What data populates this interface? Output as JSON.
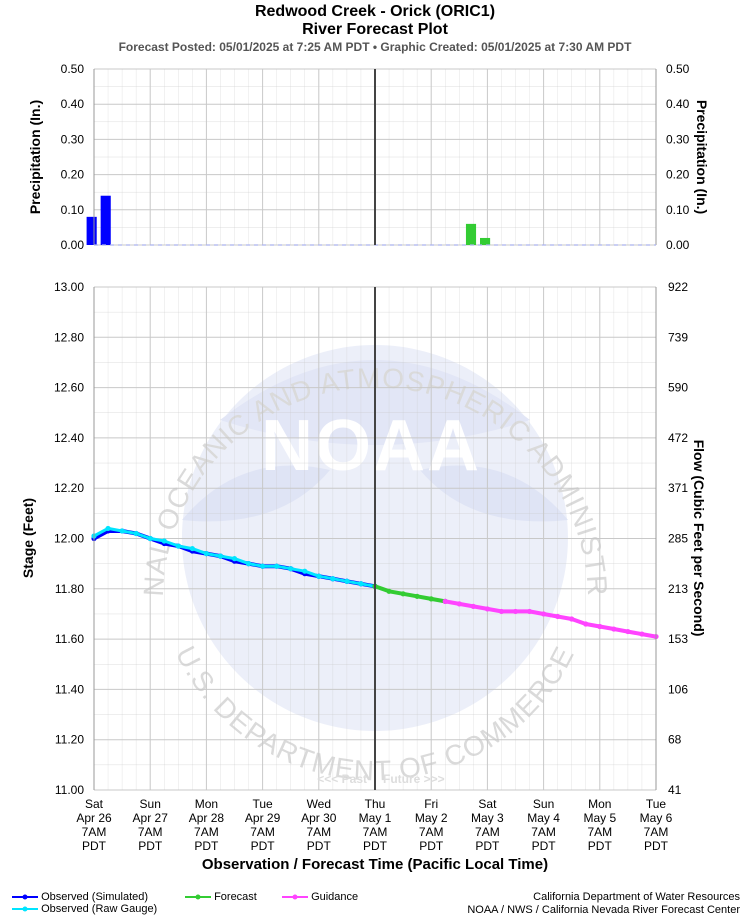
{
  "header": {
    "title": "Redwood Creek - Orick (ORIC1)",
    "subtitle": "River Forecast Plot",
    "posted_line": "Forecast Posted: 05/01/2025 at 7:25 AM PDT  •  Graphic Created: 05/01/2025 at 7:30 AM PDT"
  },
  "labels": {
    "past": "<<< Past",
    "future": "Future >>>",
    "watermark_top": "NATIONAL OCEANIC AND ATMOSPHERIC ADMINISTRATION",
    "watermark_bottom": "U.S. DEPARTMENT OF COMMERCE",
    "watermark_logo": "NOAA"
  },
  "legend": {
    "observed_simulated": "Observed (Simulated)",
    "observed_raw": "Observed (Raw Gauge)",
    "forecast": "Forecast",
    "guidance": "Guidance"
  },
  "credits": {
    "line1": "California Department of Water Resources",
    "line2": "NOAA / NWS / California Nevada River Forecast Center"
  },
  "colors": {
    "observed_simulated": "#0000ff",
    "observed_raw": "#00e5ff",
    "forecast": "#33cc33",
    "guidance": "#ff44ff",
    "grid": "#c8c8c8",
    "now_line": "#444444"
  },
  "chart_data": [
    {
      "type": "bar",
      "ylabel": "Precipitation (In.)",
      "ylabel_right": "Precipitation (In.)",
      "ylim": [
        0,
        0.5
      ],
      "yticks": [
        "0.00",
        "0.10",
        "0.20",
        "0.30",
        "0.40",
        "0.50"
      ],
      "series": [
        {
          "name": "Observed",
          "color": "#0000ff",
          "x": [
            "04/26 06:00",
            "04/26 12:00"
          ],
          "values": [
            0.08,
            0.14
          ]
        },
        {
          "name": "Forecast",
          "color": "#33cc33",
          "x": [
            "05/03 00:00",
            "05/03 06:00"
          ],
          "values": [
            0.06,
            0.02
          ]
        }
      ]
    },
    {
      "type": "line",
      "xlabel": "Observation / Forecast Time (Pacific Local Time)",
      "ylabel": "Stage (Feet)",
      "ylabel_right": "Flow (Cubic Feet per Second)",
      "ylim": [
        11.0,
        13.0
      ],
      "yticks": [
        "11.00",
        "11.20",
        "11.40",
        "11.60",
        "11.80",
        "12.00",
        "12.20",
        "12.40",
        "12.60",
        "12.80",
        "13.00"
      ],
      "right_ticks": [
        "41",
        "68",
        "106",
        "153",
        "213",
        "285",
        "371",
        "472",
        "590",
        "739",
        "922"
      ],
      "x_ticks": [
        {
          "day": "Sat",
          "date": "Apr 26",
          "time": "7AM",
          "tz": "PDT"
        },
        {
          "day": "Sun",
          "date": "Apr 27",
          "time": "7AM",
          "tz": "PDT"
        },
        {
          "day": "Mon",
          "date": "Apr 28",
          "time": "7AM",
          "tz": "PDT"
        },
        {
          "day": "Tue",
          "date": "Apr 29",
          "time": "7AM",
          "tz": "PDT"
        },
        {
          "day": "Wed",
          "date": "Apr 30",
          "time": "7AM",
          "tz": "PDT"
        },
        {
          "day": "Thu",
          "date": "May 1",
          "time": "7AM",
          "tz": "PDT"
        },
        {
          "day": "Fri",
          "date": "May 2",
          "time": "7AM",
          "tz": "PDT"
        },
        {
          "day": "Sat",
          "date": "May 3",
          "time": "7AM",
          "tz": "PDT"
        },
        {
          "day": "Sun",
          "date": "May 4",
          "time": "7AM",
          "tz": "PDT"
        },
        {
          "day": "Mon",
          "date": "May 5",
          "time": "7AM",
          "tz": "PDT"
        },
        {
          "day": "Tue",
          "date": "May 6",
          "time": "7AM",
          "tz": "PDT"
        }
      ],
      "now": "05/01 07:00",
      "series": [
        {
          "name": "Observed (Simulated)",
          "color": "#0000ff",
          "x": [
            "04/26 07:00",
            "04/26 13:00",
            "04/26 19:00",
            "04/27 01:00",
            "04/27 07:00",
            "04/27 13:00",
            "04/27 19:00",
            "04/28 01:00",
            "04/28 07:00",
            "04/28 13:00",
            "04/28 19:00",
            "04/29 01:00",
            "04/29 07:00",
            "04/29 13:00",
            "04/29 19:00",
            "04/30 01:00",
            "04/30 07:00",
            "04/30 13:00",
            "04/30 19:00",
            "05/01 01:00",
            "05/01 07:00"
          ],
          "values": [
            12.0,
            12.03,
            12.03,
            12.02,
            12.0,
            11.98,
            11.97,
            11.95,
            11.94,
            11.93,
            11.91,
            11.9,
            11.89,
            11.89,
            11.88,
            11.86,
            11.85,
            11.84,
            11.83,
            11.82,
            11.81
          ]
        },
        {
          "name": "Observed (Raw Gauge)",
          "color": "#00e5ff",
          "x": [
            "04/26 07:00",
            "04/26 13:00",
            "04/26 19:00",
            "04/27 01:00",
            "04/27 07:00",
            "04/27 13:00",
            "04/27 19:00",
            "04/28 01:00",
            "04/28 07:00",
            "04/28 13:00",
            "04/28 19:00",
            "04/29 01:00",
            "04/29 07:00",
            "04/29 13:00",
            "04/29 19:00",
            "04/30 01:00",
            "04/30 07:00",
            "04/30 13:00",
            "04/30 19:00",
            "05/01 01:00",
            "05/01 07:00"
          ],
          "values": [
            12.01,
            12.04,
            12.03,
            12.02,
            12.0,
            11.99,
            11.97,
            11.96,
            11.94,
            11.93,
            11.92,
            11.9,
            11.89,
            11.89,
            11.88,
            11.87,
            11.85,
            11.84,
            11.83,
            11.82,
            11.81
          ]
        },
        {
          "name": "Forecast",
          "color": "#33cc33",
          "x": [
            "05/01 07:00",
            "05/01 13:00",
            "05/01 19:00",
            "05/02 01:00",
            "05/02 07:00",
            "05/02 13:00"
          ],
          "values": [
            11.81,
            11.79,
            11.78,
            11.77,
            11.76,
            11.75
          ]
        },
        {
          "name": "Guidance",
          "color": "#ff44ff",
          "x": [
            "05/02 13:00",
            "05/02 19:00",
            "05/03 01:00",
            "05/03 07:00",
            "05/03 13:00",
            "05/03 19:00",
            "05/04 01:00",
            "05/04 07:00",
            "05/04 13:00",
            "05/04 19:00",
            "05/05 01:00",
            "05/05 07:00",
            "05/05 13:00",
            "05/05 19:00",
            "05/06 01:00",
            "05/06 07:00"
          ],
          "values": [
            11.75,
            11.74,
            11.73,
            11.72,
            11.71,
            11.71,
            11.71,
            11.7,
            11.69,
            11.68,
            11.66,
            11.65,
            11.64,
            11.63,
            11.62,
            11.61
          ]
        }
      ]
    }
  ]
}
